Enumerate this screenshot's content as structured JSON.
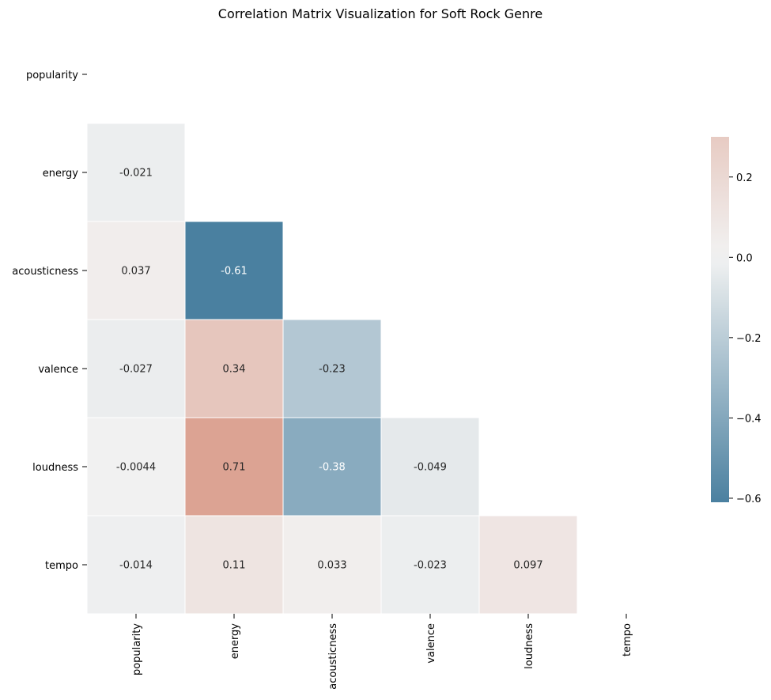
{
  "chart_data": {
    "type": "heatmap",
    "title": "Correlation Matrix Visualization for Soft Rock Genre",
    "row_labels": [
      "popularity",
      "energy",
      "acousticness",
      "valence",
      "loudness",
      "tempo"
    ],
    "col_labels": [
      "popularity",
      "energy",
      "acousticness",
      "valence",
      "loudness",
      "tempo"
    ],
    "mask": "upper-triangle-including-diagonal",
    "cells": [
      {
        "row": "energy",
        "col": "popularity",
        "value": -0.021,
        "label": "-0.021"
      },
      {
        "row": "acousticness",
        "col": "popularity",
        "value": 0.037,
        "label": "0.037"
      },
      {
        "row": "acousticness",
        "col": "energy",
        "value": -0.61,
        "label": "-0.61"
      },
      {
        "row": "valence",
        "col": "popularity",
        "value": -0.027,
        "label": "-0.027"
      },
      {
        "row": "valence",
        "col": "energy",
        "value": 0.34,
        "label": "0.34"
      },
      {
        "row": "valence",
        "col": "acousticness",
        "value": -0.23,
        "label": "-0.23"
      },
      {
        "row": "loudness",
        "col": "popularity",
        "value": -0.0044,
        "label": "-0.0044"
      },
      {
        "row": "loudness",
        "col": "energy",
        "value": 0.71,
        "label": "0.71"
      },
      {
        "row": "loudness",
        "col": "acousticness",
        "value": -0.38,
        "label": "-0.38"
      },
      {
        "row": "loudness",
        "col": "valence",
        "value": -0.049,
        "label": "-0.049"
      },
      {
        "row": "tempo",
        "col": "popularity",
        "value": -0.014,
        "label": "-0.014"
      },
      {
        "row": "tempo",
        "col": "energy",
        "value": 0.11,
        "label": "0.11"
      },
      {
        "row": "tempo",
        "col": "acousticness",
        "value": 0.033,
        "label": "0.033"
      },
      {
        "row": "tempo",
        "col": "valence",
        "value": -0.023,
        "label": "-0.023"
      },
      {
        "row": "tempo",
        "col": "loudness",
        "value": 0.097,
        "label": "0.097"
      }
    ],
    "colorbar": {
      "vmin": -0.61,
      "vmax": 0.3,
      "ticks": [
        0.2,
        0.0,
        -0.2,
        -0.4,
        -0.6
      ],
      "tick_labels": [
        "0.2",
        "0.0",
        "−0.2",
        "−0.4",
        "−0.6"
      ],
      "colors": {
        "negative": "#4a80a0",
        "center": "#f2f2f2",
        "positive": "#dca393"
      }
    }
  }
}
